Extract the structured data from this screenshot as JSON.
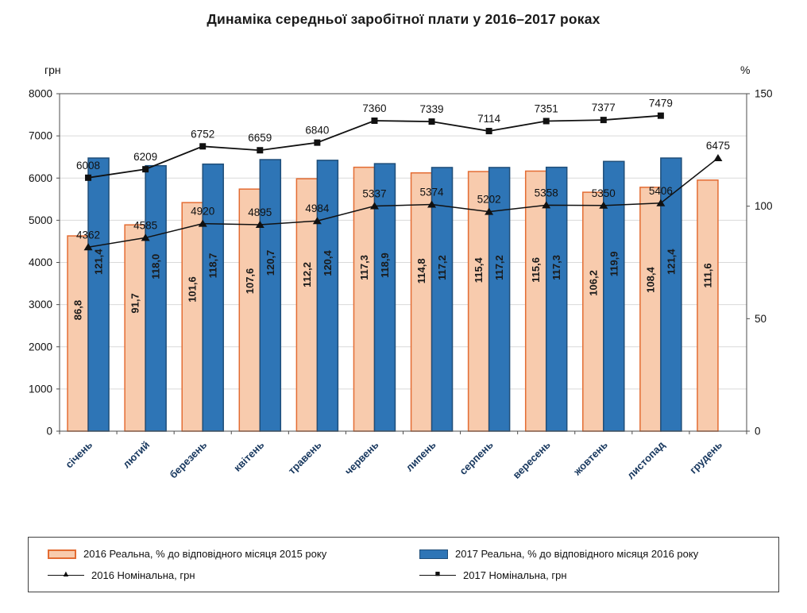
{
  "title": "Динаміка середньої заробітної плати у 2016–2017 роках",
  "colors": {
    "orange_fill": "#F8CBAD",
    "orange_stroke": "#E36C33",
    "blue_fill": "#2E75B6",
    "blue_stroke": "#1F4E79",
    "line": "#111111",
    "grid": "#D9D9D9",
    "axis": "#4d4d4d",
    "month_label": "#17375E",
    "text": "#111111"
  },
  "chart_data": {
    "type": "bar",
    "title": "Динаміка середньої заробітної плати у 2016–2017 роках",
    "categories": [
      "січень",
      "лютий",
      "березень",
      "квітень",
      "травень",
      "червень",
      "липень",
      "серпень",
      "вересень",
      "жовтень",
      "листопад",
      "грудень"
    ],
    "left_axis": {
      "unit": "грн",
      "min": 0,
      "max": 8000,
      "step": 1000
    },
    "right_axis": {
      "unit": "%",
      "min": 0,
      "max": 150,
      "step": 50
    },
    "grid": true,
    "legend_position": "bottom",
    "series": [
      {
        "id": "real-2016",
        "name": "2016 Реальна, % до відповідного місяця 2015 року",
        "type": "bar",
        "axis": "right",
        "values": [
          86.8,
          91.7,
          101.6,
          107.6,
          112.2,
          117.3,
          114.8,
          115.4,
          115.6,
          106.2,
          108.4,
          111.6
        ],
        "labels": [
          "86,8",
          "91,7",
          "101,6",
          "107,6",
          "112,2",
          "117,3",
          "114,8",
          "115,4",
          "115,6",
          "106,2",
          "108,4",
          "111,6"
        ]
      },
      {
        "id": "real-2017",
        "name": "2017 Реальна, % до відповідного місяця 2016 року",
        "type": "bar",
        "axis": "right",
        "values": [
          121.4,
          118.0,
          118.7,
          120.7,
          120.4,
          118.9,
          117.2,
          117.2,
          117.3,
          119.9,
          121.4,
          null
        ],
        "labels": [
          "121,4",
          "118,0",
          "118,7",
          "120,7",
          "120,4",
          "118,9",
          "117,2",
          "117,2",
          "117,3",
          "119,9",
          "121,4",
          null
        ]
      },
      {
        "id": "nominal-2016",
        "name": "2016 Номінальна, грн",
        "type": "line",
        "marker": "triangle",
        "axis": "left",
        "values": [
          4362,
          4585,
          4920,
          4895,
          4984,
          5337,
          5374,
          5202,
          5358,
          5350,
          5406,
          6475
        ]
      },
      {
        "id": "nominal-2017",
        "name": "2017 Номінальна, грн",
        "type": "line",
        "marker": "square",
        "axis": "left",
        "values": [
          6008,
          6209,
          6752,
          6659,
          6840,
          7360,
          7339,
          7114,
          7351,
          7377,
          7479,
          null
        ]
      }
    ]
  },
  "legend": {
    "marker_glyphs": {
      "triangle": "▲",
      "square": "■"
    }
  }
}
